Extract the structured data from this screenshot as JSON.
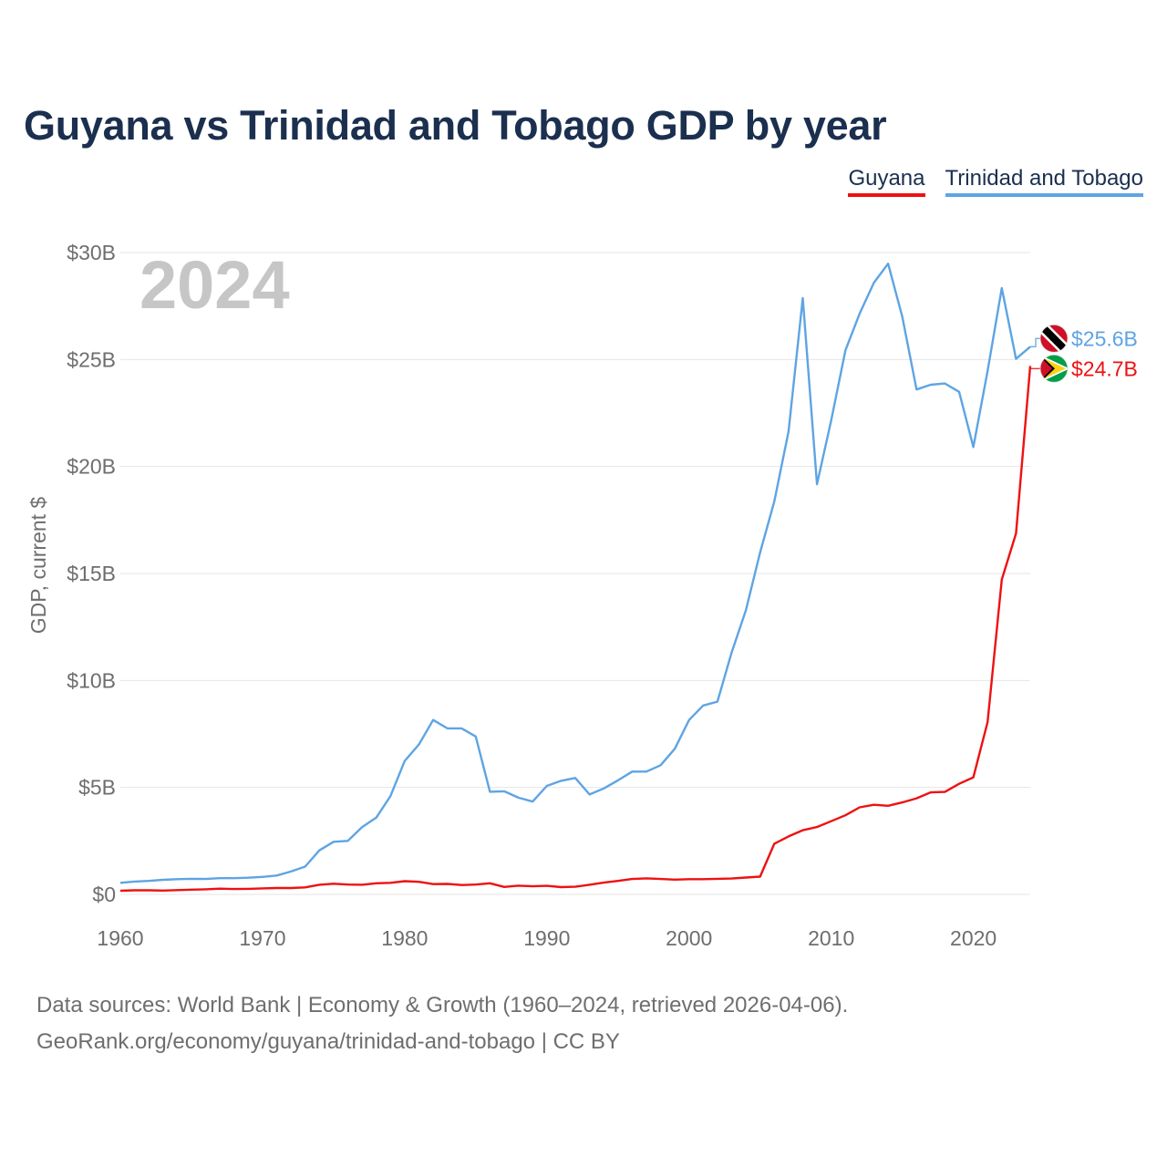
{
  "title": "Guyana vs Trinidad and Tobago GDP by year",
  "footer": {
    "line1": "Data sources: World Bank | Economy & Growth (1960–2024, retrieved 2026-04-06).",
    "line2": "GeoRank.org/economy/guyana/trinidad-and-tobago | CC BY"
  },
  "chart_data": {
    "type": "line",
    "title": "Guyana vs Trinidad and Tobago GDP by year",
    "ylabel": "GDP, current $",
    "xlabel": "",
    "year_watermark": "2024",
    "xlim": [
      1960,
      2024
    ],
    "ylim": [
      0,
      30
    ],
    "x_ticks": [
      1960,
      1970,
      1980,
      1990,
      2000,
      2010,
      2020
    ],
    "y_ticks": [
      0,
      5,
      10,
      15,
      20,
      25,
      30
    ],
    "y_tick_labels": [
      "$0",
      "$5B",
      "$10B",
      "$15B",
      "$20B",
      "$25B",
      "$30B"
    ],
    "grid": true,
    "legend_position": "top-right",
    "unit": "billion USD",
    "x": [
      1960,
      1961,
      1962,
      1963,
      1964,
      1965,
      1966,
      1967,
      1968,
      1969,
      1970,
      1971,
      1972,
      1973,
      1974,
      1975,
      1976,
      1977,
      1978,
      1979,
      1980,
      1981,
      1982,
      1983,
      1984,
      1985,
      1986,
      1987,
      1988,
      1989,
      1990,
      1991,
      1992,
      1993,
      1994,
      1995,
      1996,
      1997,
      1998,
      1999,
      2000,
      2001,
      2002,
      2003,
      2004,
      2005,
      2006,
      2007,
      2008,
      2009,
      2010,
      2011,
      2012,
      2013,
      2014,
      2015,
      2016,
      2017,
      2018,
      2019,
      2020,
      2021,
      2022,
      2023,
      2024
    ],
    "series": [
      {
        "name": "Guyana",
        "color": "#ee1111",
        "end_label": "$24.7B",
        "flag": "guyana-flag-icon",
        "values": [
          0.17,
          0.19,
          0.19,
          0.18,
          0.2,
          0.22,
          0.24,
          0.27,
          0.25,
          0.26,
          0.28,
          0.3,
          0.3,
          0.33,
          0.45,
          0.5,
          0.46,
          0.45,
          0.52,
          0.54,
          0.62,
          0.59,
          0.48,
          0.49,
          0.44,
          0.46,
          0.52,
          0.35,
          0.41,
          0.38,
          0.4,
          0.34,
          0.36,
          0.45,
          0.55,
          0.63,
          0.72,
          0.75,
          0.72,
          0.69,
          0.71,
          0.71,
          0.73,
          0.74,
          0.79,
          0.83,
          2.37,
          2.71,
          3.0,
          3.15,
          3.42,
          3.7,
          4.07,
          4.19,
          4.14,
          4.3,
          4.49,
          4.77,
          4.79,
          5.17,
          5.47,
          8.05,
          14.72,
          16.87,
          24.7
        ]
      },
      {
        "name": "Trinidad and Tobago",
        "color": "#5ea4e3",
        "end_label": "$25.6B",
        "flag": "trinidad-flag-icon",
        "values": [
          0.54,
          0.6,
          0.63,
          0.68,
          0.71,
          0.73,
          0.72,
          0.76,
          0.76,
          0.78,
          0.82,
          0.88,
          1.07,
          1.3,
          2.06,
          2.46,
          2.5,
          3.14,
          3.59,
          4.6,
          6.24,
          7.01,
          8.15,
          7.76,
          7.76,
          7.38,
          4.8,
          4.82,
          4.52,
          4.34,
          5.07,
          5.31,
          5.44,
          4.67,
          4.95,
          5.33,
          5.74,
          5.74,
          6.04,
          6.81,
          8.15,
          8.83,
          9.01,
          11.31,
          13.28,
          15.98,
          18.37,
          21.64,
          27.87,
          19.17,
          22.16,
          25.43,
          27.15,
          28.59,
          29.48,
          26.99,
          23.6,
          23.82,
          23.88,
          23.49,
          20.91,
          24.46,
          28.34,
          25.03,
          25.6
        ]
      }
    ]
  }
}
